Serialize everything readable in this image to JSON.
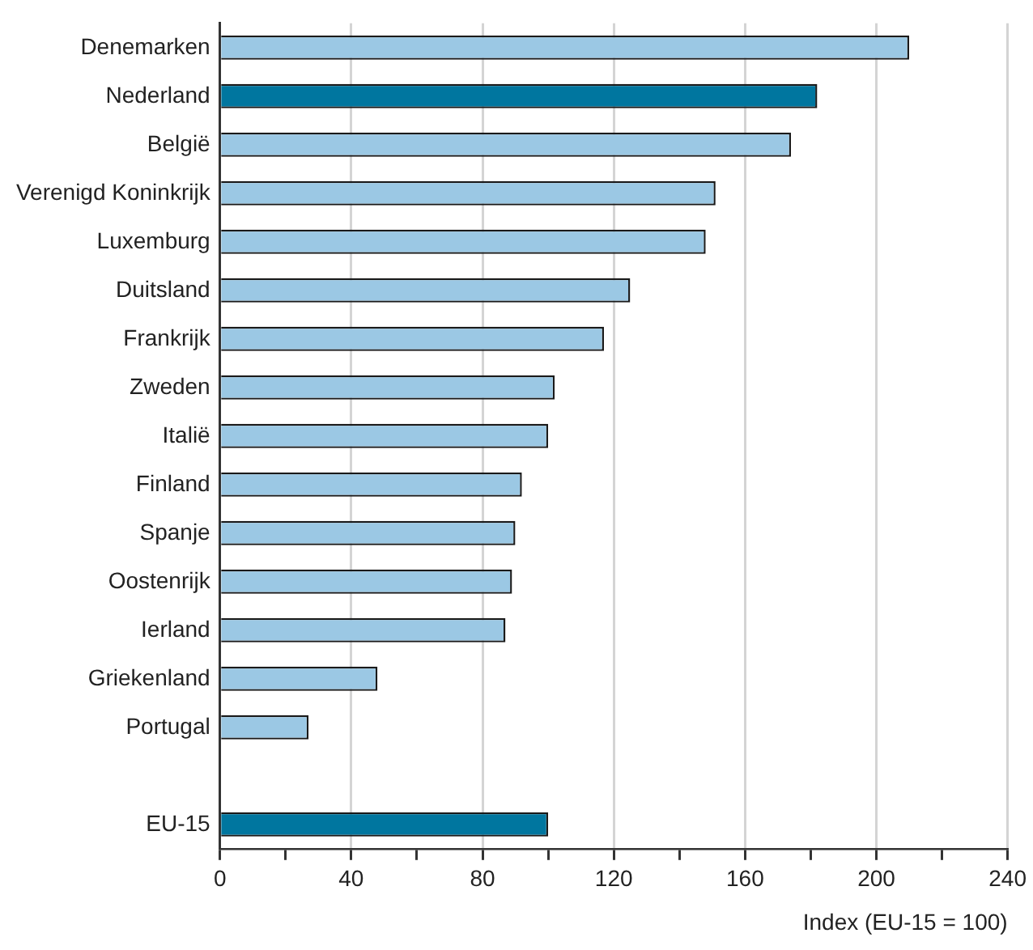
{
  "chart_data": {
    "type": "bar",
    "orientation": "horizontal",
    "xlabel": "Index (EU-15 = 100)",
    "categories": [
      "Denemarken",
      "Nederland",
      "België",
      "Verenigd Koninkrijk",
      "Luxemburg",
      "Duitsland",
      "Frankrijk",
      "Zweden",
      "Italië",
      "Finland",
      "Spanje",
      "Oostenrijk",
      "Ierland",
      "Griekenland",
      "Portugal",
      null,
      "EU-15"
    ],
    "values": [
      210,
      182,
      174,
      151,
      148,
      125,
      117,
      102,
      100,
      92,
      90,
      89,
      87,
      48,
      27,
      null,
      100
    ],
    "colors": [
      "#9bc8e4",
      "#00769f",
      "#9bc8e4",
      "#9bc8e4",
      "#9bc8e4",
      "#9bc8e4",
      "#9bc8e4",
      "#9bc8e4",
      "#9bc8e4",
      "#9bc8e4",
      "#9bc8e4",
      "#9bc8e4",
      "#9bc8e4",
      "#9bc8e4",
      "#9bc8e4",
      "#9bc8e4",
      "#00769f"
    ],
    "xlim": [
      0,
      240
    ],
    "xticks": [
      0,
      {
        "value": 20,
        "label": null
      },
      40,
      {
        "value": 60,
        "label": null
      },
      80,
      {
        "value": 100,
        "label": null
      },
      120,
      {
        "value": 140,
        "label": null
      },
      160,
      {
        "value": 180,
        "label": null
      },
      200,
      {
        "value": 220,
        "label": null
      },
      240
    ],
    "grid": "x",
    "legend": false
  }
}
